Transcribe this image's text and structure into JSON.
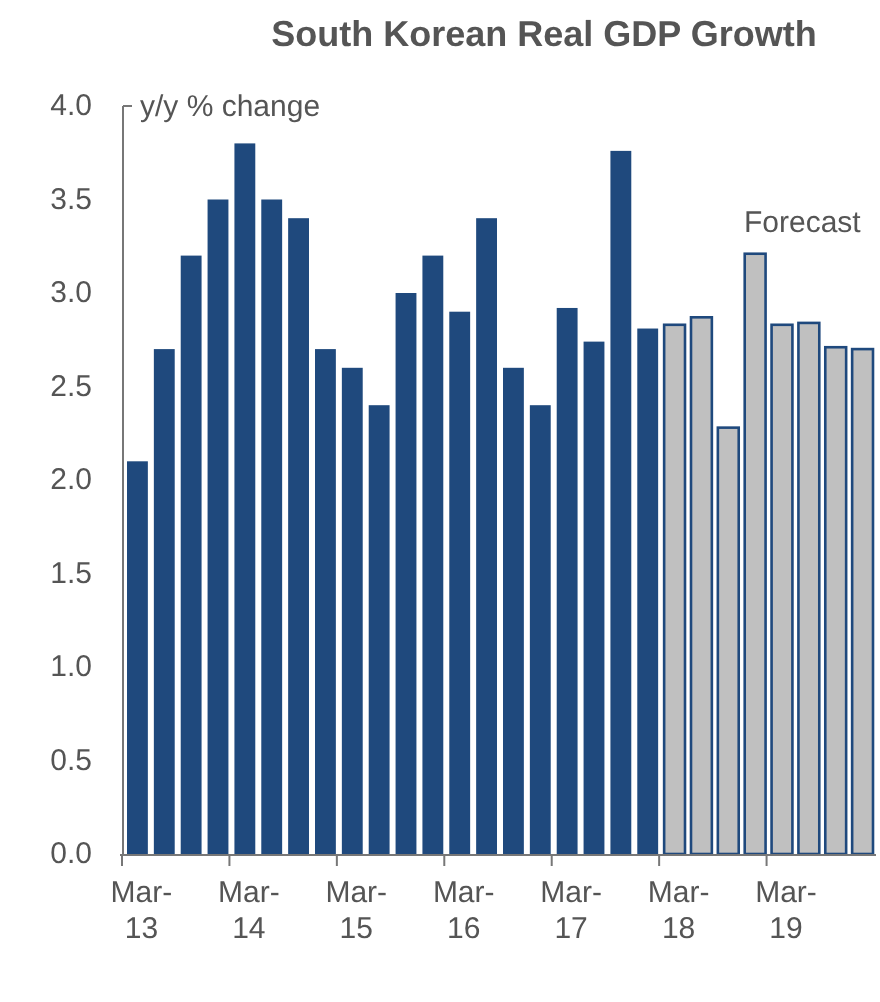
{
  "chart_data": {
    "type": "bar",
    "title": "South Korean Real GDP Growth",
    "ylabel": "y/y % change",
    "categories": [
      "Mar-13",
      null,
      null,
      null,
      "Mar-14",
      null,
      null,
      null,
      "Mar-15",
      null,
      null,
      null,
      "Mar-16",
      null,
      null,
      null,
      "Mar-17",
      null,
      null,
      null,
      "Mar-18",
      null,
      null,
      null,
      "Mar-19",
      null,
      null,
      null
    ],
    "series": [
      {
        "color": "#1f497d",
        "values": [
          2.1,
          2.7,
          3.2,
          3.5,
          3.8,
          3.5,
          3.4,
          2.7,
          2.6,
          2.4,
          3.0,
          3.2,
          2.9,
          3.4,
          2.6,
          2.4,
          2.92,
          2.74,
          3.76,
          2.81,
          null,
          null,
          null,
          null,
          null,
          null,
          null,
          null
        ]
      },
      {
        "color": "#c0c0c0",
        "values": [
          null,
          null,
          null,
          null,
          null,
          null,
          null,
          null,
          null,
          null,
          null,
          null,
          null,
          null,
          null,
          null,
          null,
          null,
          null,
          null,
          2.83,
          2.87,
          2.28,
          3.21,
          2.83,
          2.84,
          2.71,
          2.7
        ]
      }
    ],
    "ylim": [
      0,
      4
    ],
    "yticks": [
      {
        "value": 0,
        "label": "0.0"
      },
      {
        "value": 0.5,
        "label": "0.5"
      },
      {
        "value": 1,
        "label": "1.0"
      },
      {
        "value": 1.5,
        "label": "1.5"
      },
      {
        "value": 2,
        "label": "2.0"
      },
      {
        "value": 2.5,
        "label": "2.5"
      },
      {
        "value": 3,
        "label": "3.0"
      },
      {
        "value": 3.5,
        "label": "3.5"
      },
      {
        "value": 4,
        "label": "4.0"
      }
    ],
    "annotations": [
      "Forecast"
    ]
  }
}
